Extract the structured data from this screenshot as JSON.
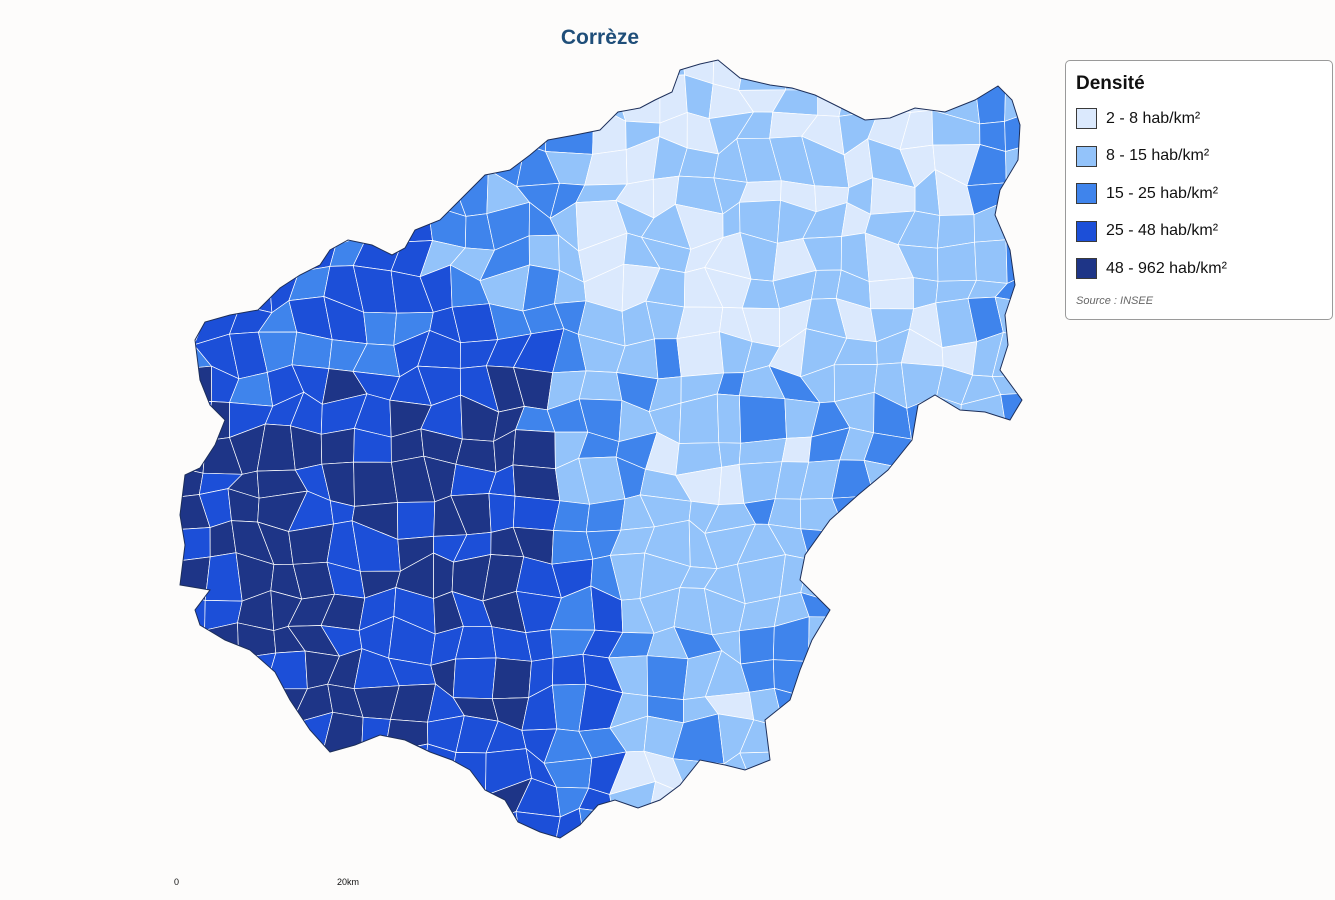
{
  "title": "Corrèze",
  "legend": {
    "title": "Densité",
    "classes": [
      {
        "label": "2 - 8 hab/km²",
        "color": "#dbe9fd"
      },
      {
        "label": "8 - 15 hab/km²",
        "color": "#93c3fa"
      },
      {
        "label": "15 - 25 hab/km²",
        "color": "#3f84ec"
      },
      {
        "label": "25 - 48 hab/km²",
        "color": "#1c4fd8"
      },
      {
        "label": "48 - 962 hab/km²",
        "color": "#1e3587"
      }
    ],
    "source": "Source : INSEE"
  },
  "scale_bar": {
    "start_label": "0",
    "end_label": "20km"
  }
}
